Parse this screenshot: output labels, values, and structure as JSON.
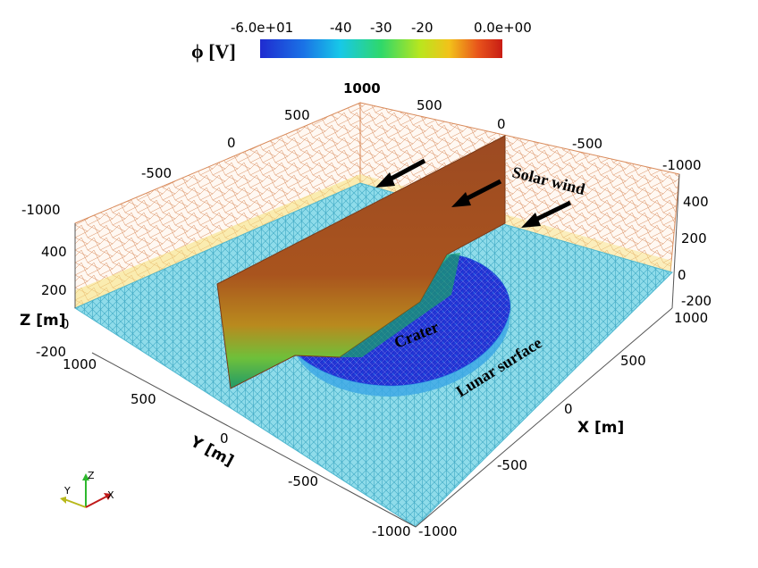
{
  "colorbar": {
    "title": "ϕ [V]",
    "ticks": [
      "-6.0e+01",
      "-40",
      "-30",
      "-20",
      "0.0e+00"
    ],
    "stops": [
      "#1f2bd0",
      "#1a73e6",
      "#17c8e8",
      "#2fd86a",
      "#b9e61e",
      "#f2c21a",
      "#e8541b",
      "#c81c14"
    ]
  },
  "axes": {
    "x_label": "X [m]",
    "y_label": "Y [m]",
    "z_label": "Z [m]",
    "x_ticks": [
      "1000",
      "500",
      "0",
      "-500",
      "-1000"
    ],
    "y_ticks": [
      "1000",
      "500",
      "0",
      "-500",
      "-1000"
    ],
    "z_ticks_left": [
      "-200",
      "0",
      "200",
      "400",
      "-1000"
    ],
    "z_ticks_right": [
      "-200",
      "0",
      "200",
      "400",
      "-1000"
    ],
    "back_ticks": [
      "1000",
      "500",
      "0",
      "-500"
    ],
    "back_right_ticks": [
      "0",
      "-500"
    ]
  },
  "annotations": {
    "solar_wind": "Solar wind",
    "crater": "Crater",
    "lunar_surface": "Lunar surface"
  },
  "orientation": {
    "z": "Z",
    "y": "Y",
    "x": "X"
  },
  "colors": {
    "surface": "#79d6e6",
    "surface_mesh": "#3fa9c4",
    "back_wall_mesh": "#d88a5a",
    "plane_top": "#9c4a22",
    "crater_deep": "#1f2bd0"
  }
}
